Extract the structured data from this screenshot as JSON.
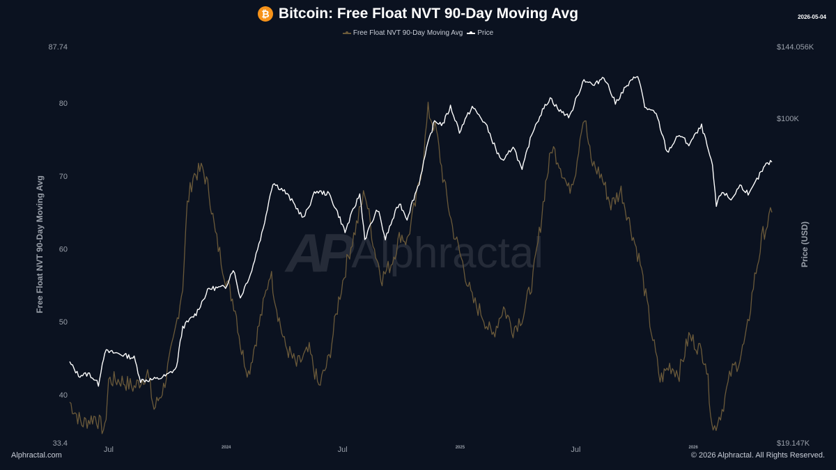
{
  "header": {
    "icon": "bitcoin-icon",
    "icon_glyph": "₿",
    "title": "Bitcoin: Free Float NVT 90-Day Moving Avg",
    "date": "2026-05-04"
  },
  "legend": {
    "nvt": "Free Float NVT 90-Day Moving Avg",
    "price": "Price"
  },
  "watermark": {
    "glyph": "AP",
    "text": "Alphractal"
  },
  "footer": {
    "left": "Alphractal.com",
    "right": "© 2026 Alphractal. All Rights Reserved."
  },
  "colors": {
    "background": "#0b1220",
    "nvt": "#6b5a3a",
    "price": "#ffffff",
    "text": "#c9ced8"
  },
  "chart_data": {
    "type": "line",
    "title": "Bitcoin: Free Float NVT 90-Day Moving Avg",
    "x_range": [
      "2023-05-01",
      "2026-05-04"
    ],
    "x_ticks": [
      {
        "date": "2023-07-01",
        "label": "Jul"
      },
      {
        "date": "2024-01-01",
        "label": "2024"
      },
      {
        "date": "2024-07-01",
        "label": "Jul"
      },
      {
        "date": "2025-01-01",
        "label": "2025"
      },
      {
        "date": "2025-07-01",
        "label": "Jul"
      },
      {
        "date": "2026-01-01",
        "label": "2026"
      }
    ],
    "y_left": {
      "label": "Free Float NVT 90-Day Moving Avg",
      "range": [
        33.4,
        87.74
      ],
      "ticks": [
        {
          "value": 33.4,
          "label": "33.4"
        },
        {
          "value": 40,
          "label": "40"
        },
        {
          "value": 50,
          "label": "50"
        },
        {
          "value": 60,
          "label": "60"
        },
        {
          "value": 70,
          "label": "70"
        },
        {
          "value": 80,
          "label": "80"
        },
        {
          "value": 87.74,
          "label": "87.74"
        }
      ]
    },
    "y_right": {
      "label": "Price (USD)",
      "scale": "log",
      "range": [
        19147,
        144056
      ],
      "ticks": [
        {
          "value": 19147,
          "label": "$19.147K"
        },
        {
          "value": 100000,
          "label": "$100K"
        },
        {
          "value": 144056,
          "label": "$144.056K"
        }
      ]
    },
    "grid": false,
    "legend_position": "top-center",
    "series": [
      {
        "name": "Free Float NVT 90-Day Moving Avg",
        "axis": "left",
        "points": [
          [
            "2023-05-01",
            39.0
          ],
          [
            "2023-05-20",
            36.0
          ],
          [
            "2023-06-10",
            37.0
          ],
          [
            "2023-06-25",
            35.0
          ],
          [
            "2023-07-01",
            42.0
          ],
          [
            "2023-07-20",
            42.0
          ],
          [
            "2023-08-10",
            41.0
          ],
          [
            "2023-08-31",
            43.0
          ],
          [
            "2023-09-10",
            38.0
          ],
          [
            "2023-09-25",
            41.0
          ],
          [
            "2023-10-10",
            47.0
          ],
          [
            "2023-10-25",
            55.0
          ],
          [
            "2023-11-01",
            66.0
          ],
          [
            "2023-11-10",
            70.0
          ],
          [
            "2023-11-25",
            71.0
          ],
          [
            "2023-12-05",
            68.0
          ],
          [
            "2023-12-15",
            62.0
          ],
          [
            "2023-12-31",
            56.0
          ],
          [
            "2024-01-15",
            52.0
          ],
          [
            "2024-01-25",
            46.0
          ],
          [
            "2024-02-05",
            43.0
          ],
          [
            "2024-02-15",
            47.0
          ],
          [
            "2024-03-01",
            53.0
          ],
          [
            "2024-03-10",
            57.0
          ],
          [
            "2024-03-20",
            52.0
          ],
          [
            "2024-04-01",
            47.0
          ],
          [
            "2024-04-20",
            44.0
          ],
          [
            "2024-05-10",
            46.0
          ],
          [
            "2024-05-25",
            41.0
          ],
          [
            "2024-06-10",
            45.0
          ],
          [
            "2024-06-25",
            53.0
          ],
          [
            "2024-07-10",
            59.0
          ],
          [
            "2024-07-25",
            64.0
          ],
          [
            "2024-08-05",
            68.0
          ],
          [
            "2024-08-20",
            60.0
          ],
          [
            "2024-09-01",
            56.0
          ],
          [
            "2024-09-15",
            58.0
          ],
          [
            "2024-09-30",
            62.0
          ],
          [
            "2024-10-10",
            61.0
          ],
          [
            "2024-10-25",
            67.0
          ],
          [
            "2024-11-05",
            73.0
          ],
          [
            "2024-11-12",
            79.0
          ],
          [
            "2024-11-25",
            76.0
          ],
          [
            "2024-12-05",
            70.0
          ],
          [
            "2024-12-20",
            63.0
          ],
          [
            "2025-01-05",
            58.0
          ],
          [
            "2025-01-20",
            53.0
          ],
          [
            "2025-02-05",
            51.0
          ],
          [
            "2025-02-20",
            48.0
          ],
          [
            "2025-03-10",
            52.0
          ],
          [
            "2025-03-25",
            49.0
          ],
          [
            "2025-04-10",
            51.0
          ],
          [
            "2025-04-25",
            56.0
          ],
          [
            "2025-05-05",
            62.0
          ],
          [
            "2025-05-15",
            69.0
          ],
          [
            "2025-05-25",
            74.0
          ],
          [
            "2025-06-05",
            72.0
          ],
          [
            "2025-06-20",
            68.0
          ],
          [
            "2025-07-01",
            71.0
          ],
          [
            "2025-07-10",
            77.0
          ],
          [
            "2025-07-15",
            78.0
          ],
          [
            "2025-07-25",
            72.0
          ],
          [
            "2025-08-10",
            70.0
          ],
          [
            "2025-08-25",
            66.0
          ],
          [
            "2025-09-10",
            68.0
          ],
          [
            "2025-09-25",
            63.0
          ],
          [
            "2025-10-10",
            58.0
          ],
          [
            "2025-10-25",
            50.0
          ],
          [
            "2025-11-10",
            42.0
          ],
          [
            "2025-11-25",
            44.0
          ],
          [
            "2025-12-10",
            43.0
          ],
          [
            "2025-12-25",
            48.0
          ],
          [
            "2026-01-05",
            47.0
          ],
          [
            "2026-01-20",
            45.0
          ],
          [
            "2026-02-01",
            35.0
          ],
          [
            "2026-02-15",
            38.0
          ],
          [
            "2026-03-01",
            43.0
          ],
          [
            "2026-03-15",
            45.0
          ],
          [
            "2026-03-25",
            48.0
          ],
          [
            "2026-04-05",
            55.0
          ],
          [
            "2026-04-20",
            62.0
          ],
          [
            "2026-05-04",
            65.0
          ]
        ]
      },
      {
        "name": "Price",
        "axis": "right",
        "points": [
          [
            "2023-05-01",
            28800
          ],
          [
            "2023-05-15",
            27000
          ],
          [
            "2023-06-01",
            27200
          ],
          [
            "2023-06-15",
            25800
          ],
          [
            "2023-06-25",
            30500
          ],
          [
            "2023-07-15",
            30200
          ],
          [
            "2023-08-10",
            29500
          ],
          [
            "2023-08-20",
            26300
          ],
          [
            "2023-09-15",
            26500
          ],
          [
            "2023-09-30",
            27000
          ],
          [
            "2023-10-15",
            28000
          ],
          [
            "2023-10-25",
            34500
          ],
          [
            "2023-11-15",
            37000
          ],
          [
            "2023-12-05",
            42000
          ],
          [
            "2023-12-31",
            42300
          ],
          [
            "2024-01-12",
            46500
          ],
          [
            "2024-01-23",
            40000
          ],
          [
            "2024-02-10",
            46000
          ],
          [
            "2024-02-28",
            57000
          ],
          [
            "2024-03-14",
            72000
          ],
          [
            "2024-04-01",
            69000
          ],
          [
            "2024-04-15",
            65000
          ],
          [
            "2024-05-01",
            60000
          ],
          [
            "2024-05-20",
            69000
          ],
          [
            "2024-06-10",
            68000
          ],
          [
            "2024-06-25",
            61000
          ],
          [
            "2024-07-05",
            56000
          ],
          [
            "2024-07-28",
            68000
          ],
          [
            "2024-08-05",
            54000
          ],
          [
            "2024-08-25",
            63000
          ],
          [
            "2024-09-06",
            54000
          ],
          [
            "2024-09-28",
            65000
          ],
          [
            "2024-10-10",
            60000
          ],
          [
            "2024-10-29",
            72000
          ],
          [
            "2024-11-12",
            88000
          ],
          [
            "2024-11-22",
            98500
          ],
          [
            "2024-12-05",
            97000
          ],
          [
            "2024-12-17",
            106000
          ],
          [
            "2024-12-31",
            93500
          ],
          [
            "2025-01-20",
            106000
          ],
          [
            "2025-02-10",
            97000
          ],
          [
            "2025-02-28",
            84000
          ],
          [
            "2025-03-10",
            80000
          ],
          [
            "2025-03-25",
            87000
          ],
          [
            "2025-04-08",
            76500
          ],
          [
            "2025-04-25",
            94000
          ],
          [
            "2025-05-10",
            104000
          ],
          [
            "2025-05-22",
            111000
          ],
          [
            "2025-06-05",
            104000
          ],
          [
            "2025-06-22",
            101000
          ],
          [
            "2025-07-14",
            122000
          ],
          [
            "2025-07-30",
            118000
          ],
          [
            "2025-08-14",
            124000
          ],
          [
            "2025-09-01",
            108000
          ],
          [
            "2025-09-15",
            116000
          ],
          [
            "2025-10-06",
            125000
          ],
          [
            "2025-10-17",
            106000
          ],
          [
            "2025-11-04",
            102000
          ],
          [
            "2025-11-21",
            84000
          ],
          [
            "2025-12-10",
            92000
          ],
          [
            "2025-12-25",
            87500
          ],
          [
            "2026-01-14",
            96000
          ],
          [
            "2026-01-31",
            78000
          ],
          [
            "2026-02-06",
            64000
          ],
          [
            "2026-02-15",
            69000
          ],
          [
            "2026-03-01",
            66000
          ],
          [
            "2026-03-15",
            71000
          ],
          [
            "2026-03-30",
            68000
          ],
          [
            "2026-04-15",
            75000
          ],
          [
            "2026-04-25",
            79000
          ],
          [
            "2026-05-04",
            80000
          ]
        ]
      }
    ]
  }
}
